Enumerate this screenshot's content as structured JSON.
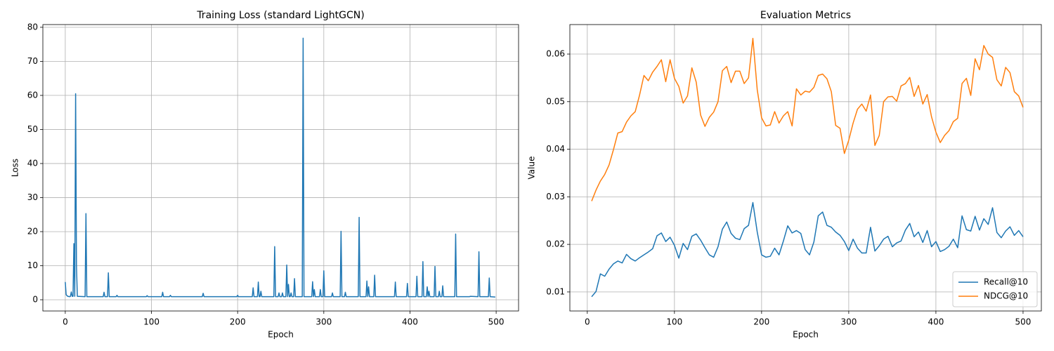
{
  "chart_data": [
    {
      "type": "line",
      "title": "Training Loss (standard LightGCN)",
      "xlabel": "Epoch",
      "ylabel": "Loss",
      "x": [
        0,
        1,
        2,
        3,
        5,
        6,
        7,
        8,
        9,
        10,
        11,
        12,
        13,
        14,
        23,
        24,
        25,
        44,
        45,
        46,
        49,
        50,
        51,
        59,
        60,
        61,
        94,
        95,
        96,
        112,
        113,
        114,
        121,
        122,
        123,
        159,
        160,
        161,
        199,
        200,
        201,
        217,
        218,
        219,
        223,
        224,
        225,
        226,
        227,
        228,
        242,
        243,
        244,
        247,
        248,
        249,
        251,
        252,
        253,
        256,
        257,
        258,
        259,
        260,
        261,
        262,
        263,
        265,
        266,
        267,
        275,
        276,
        277,
        286,
        287,
        288,
        289,
        290,
        295,
        296,
        297,
        299,
        300,
        301,
        309,
        310,
        311,
        319,
        320,
        321,
        324,
        325,
        326,
        340,
        341,
        342,
        349,
        350,
        351,
        352,
        353,
        358,
        359,
        360,
        382,
        383,
        384,
        396,
        397,
        398,
        407,
        408,
        409,
        414,
        415,
        416,
        419,
        420,
        421,
        422,
        423,
        428,
        429,
        430,
        433,
        434,
        435,
        437,
        438,
        439,
        452,
        453,
        454,
        469,
        470,
        479,
        480,
        481,
        491,
        492,
        493,
        499
      ],
      "values": [
        5.2,
        1.5,
        1.2,
        1.0,
        0.9,
        1.0,
        2.3,
        1.0,
        1.0,
        16.5,
        1.0,
        60.5,
        10.0,
        1.0,
        0.9,
        25.3,
        0.9,
        0.9,
        2.2,
        0.9,
        0.9,
        7.9,
        0.9,
        0.9,
        1.3,
        0.9,
        0.9,
        1.2,
        0.9,
        0.9,
        2.2,
        0.9,
        0.9,
        1.3,
        0.9,
        0.9,
        1.9,
        0.9,
        0.9,
        1.3,
        0.9,
        0.9,
        3.5,
        0.9,
        0.9,
        5.2,
        0.9,
        0.9,
        2.5,
        0.9,
        0.9,
        15.6,
        0.9,
        0.9,
        2.0,
        0.9,
        0.9,
        2.0,
        0.9,
        0.9,
        10.2,
        0.9,
        4.5,
        0.9,
        0.9,
        2.0,
        0.9,
        0.9,
        6.2,
        0.9,
        0.9,
        76.8,
        0.9,
        0.9,
        5.3,
        0.9,
        3.0,
        0.9,
        0.9,
        3.0,
        0.9,
        0.9,
        8.5,
        0.9,
        0.9,
        2.0,
        0.9,
        0.9,
        20.1,
        0.9,
        0.9,
        2.2,
        0.9,
        0.9,
        24.2,
        0.9,
        0.9,
        5.5,
        0.9,
        3.8,
        0.9,
        0.9,
        7.2,
        0.9,
        0.9,
        5.2,
        0.9,
        0.9,
        4.8,
        0.9,
        0.9,
        6.9,
        0.9,
        0.9,
        11.2,
        0.9,
        0.9,
        3.8,
        0.9,
        2.5,
        0.9,
        0.9,
        9.8,
        0.9,
        0.9,
        2.5,
        0.9,
        0.9,
        4.1,
        0.9,
        0.9,
        19.3,
        0.9,
        0.9,
        1.0,
        0.9,
        14.1,
        0.9,
        0.9,
        6.4,
        0.9,
        0.8
      ],
      "color": "#1f77b4",
      "xlim": [
        -26,
        526
      ],
      "ylim": [
        -3.3,
        80.8
      ],
      "xticks": [
        0,
        100,
        200,
        300,
        400,
        500
      ],
      "yticks": [
        0,
        10,
        20,
        30,
        40,
        50,
        60,
        70,
        80
      ],
      "grid": true
    },
    {
      "type": "line",
      "title": "Evaluation Metrics",
      "xlabel": "Epoch",
      "ylabel": "Value",
      "x": [
        5,
        10,
        15,
        20,
        25,
        30,
        35,
        40,
        45,
        50,
        55,
        60,
        65,
        70,
        75,
        80,
        85,
        90,
        95,
        100,
        105,
        110,
        115,
        120,
        125,
        130,
        135,
        140,
        145,
        150,
        155,
        160,
        165,
        170,
        175,
        180,
        185,
        190,
        195,
        200,
        205,
        210,
        215,
        220,
        225,
        230,
        235,
        240,
        245,
        250,
        255,
        260,
        265,
        270,
        275,
        280,
        285,
        290,
        295,
        300,
        305,
        310,
        315,
        320,
        325,
        330,
        335,
        340,
        345,
        350,
        355,
        360,
        365,
        370,
        375,
        380,
        385,
        390,
        395,
        400,
        405,
        410,
        415,
        420,
        425,
        430,
        435,
        440,
        445,
        450,
        455,
        460,
        465,
        470,
        475,
        480,
        485,
        490,
        495,
        500
      ],
      "series": [
        {
          "name": "Recall@10",
          "color": "#1f77b4",
          "values": [
            0.009,
            0.0101,
            0.0138,
            0.0133,
            0.0148,
            0.0159,
            0.0165,
            0.0161,
            0.0179,
            0.017,
            0.0165,
            0.0172,
            0.0178,
            0.0184,
            0.0191,
            0.0218,
            0.0224,
            0.0206,
            0.0215,
            0.0198,
            0.0171,
            0.0202,
            0.0189,
            0.0217,
            0.0222,
            0.0209,
            0.0193,
            0.0178,
            0.0173,
            0.0195,
            0.0232,
            0.0247,
            0.0223,
            0.0213,
            0.021,
            0.0233,
            0.024,
            0.0288,
            0.0226,
            0.0178,
            0.0173,
            0.0175,
            0.0192,
            0.0178,
            0.0207,
            0.0239,
            0.0224,
            0.0229,
            0.0223,
            0.0189,
            0.0178,
            0.0205,
            0.026,
            0.0268,
            0.024,
            0.0236,
            0.0226,
            0.0219,
            0.0206,
            0.0187,
            0.0211,
            0.0192,
            0.0182,
            0.0182,
            0.0236,
            0.0186,
            0.0197,
            0.0211,
            0.0217,
            0.0195,
            0.0203,
            0.0207,
            0.023,
            0.0244,
            0.0216,
            0.0226,
            0.0204,
            0.0229,
            0.0195,
            0.0206,
            0.0185,
            0.0189,
            0.0196,
            0.0211,
            0.0193,
            0.026,
            0.0231,
            0.0228,
            0.0259,
            0.023,
            0.0254,
            0.0242,
            0.0277,
            0.0225,
            0.0214,
            0.0228,
            0.0237,
            0.0219,
            0.0229,
            0.0216
          ]
        },
        {
          "name": "NDCG@10",
          "color": "#ff7f0e",
          "values": [
            0.0291,
            0.0314,
            0.0333,
            0.0347,
            0.0367,
            0.0399,
            0.0434,
            0.0437,
            0.0457,
            0.047,
            0.0479,
            0.0514,
            0.0555,
            0.0544,
            0.0562,
            0.0574,
            0.0588,
            0.0542,
            0.0588,
            0.0549,
            0.0532,
            0.0497,
            0.0512,
            0.0571,
            0.0541,
            0.0472,
            0.0448,
            0.0467,
            0.0478,
            0.05,
            0.0565,
            0.0574,
            0.054,
            0.0564,
            0.0564,
            0.0538,
            0.055,
            0.0633,
            0.0525,
            0.0466,
            0.0449,
            0.0451,
            0.0479,
            0.0455,
            0.047,
            0.0479,
            0.0449,
            0.0527,
            0.0514,
            0.0522,
            0.052,
            0.053,
            0.0555,
            0.0558,
            0.0548,
            0.0521,
            0.045,
            0.0444,
            0.0391,
            0.0419,
            0.0455,
            0.0484,
            0.0495,
            0.048,
            0.0514,
            0.0408,
            0.0429,
            0.05,
            0.051,
            0.0511,
            0.0501,
            0.0533,
            0.0538,
            0.0551,
            0.0511,
            0.0534,
            0.0495,
            0.0515,
            0.0468,
            0.0436,
            0.0414,
            0.0429,
            0.0439,
            0.0458,
            0.0465,
            0.0538,
            0.0549,
            0.0513,
            0.059,
            0.0567,
            0.0618,
            0.06,
            0.0593,
            0.0546,
            0.0533,
            0.0572,
            0.0561,
            0.0521,
            0.0512,
            0.0488
          ]
        }
      ],
      "xlim": [
        -20,
        521
      ],
      "ylim": [
        0.006,
        0.0662
      ],
      "xticks": [
        0,
        100,
        200,
        300,
        400,
        500
      ],
      "yticks": [
        0.01,
        0.02,
        0.03,
        0.04,
        0.05,
        0.06
      ],
      "grid": true,
      "legend": "lower right"
    }
  ]
}
